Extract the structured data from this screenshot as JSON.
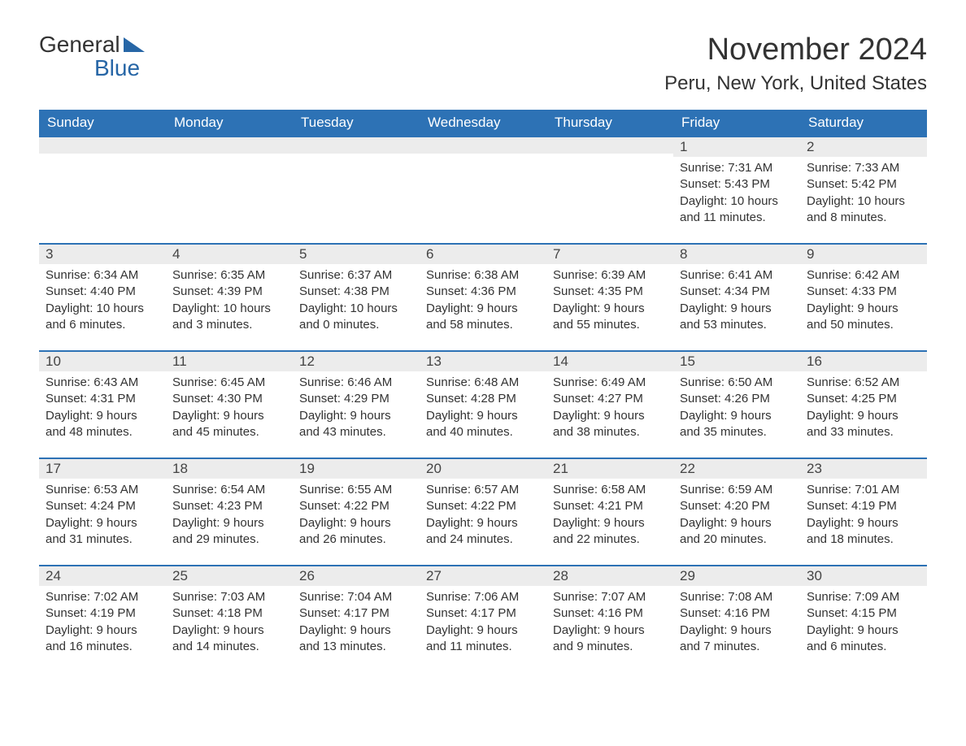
{
  "logo": {
    "word1": "General",
    "word2": "Blue"
  },
  "title": "November 2024",
  "location": "Peru, New York, United States",
  "colors": {
    "header_bg": "#2d72b5",
    "header_text": "#ffffff",
    "daynum_bg": "#ececec",
    "rule": "#2d72b5",
    "body_text": "#333333",
    "logo_accent": "#2766a6",
    "page_bg": "#ffffff"
  },
  "typography": {
    "title_fontsize": 38,
    "location_fontsize": 24,
    "header_fontsize": 17,
    "daynum_fontsize": 17,
    "body_fontsize": 15,
    "font_family": "Arial"
  },
  "layout": {
    "columns": 7,
    "rows": 5,
    "leading_blanks": 5
  },
  "weekdays": [
    "Sunday",
    "Monday",
    "Tuesday",
    "Wednesday",
    "Thursday",
    "Friday",
    "Saturday"
  ],
  "days": [
    {
      "n": 1,
      "sunrise": "7:31 AM",
      "sunset": "5:43 PM",
      "daylight": "10 hours and 11 minutes."
    },
    {
      "n": 2,
      "sunrise": "7:33 AM",
      "sunset": "5:42 PM",
      "daylight": "10 hours and 8 minutes."
    },
    {
      "n": 3,
      "sunrise": "6:34 AM",
      "sunset": "4:40 PM",
      "daylight": "10 hours and 6 minutes."
    },
    {
      "n": 4,
      "sunrise": "6:35 AM",
      "sunset": "4:39 PM",
      "daylight": "10 hours and 3 minutes."
    },
    {
      "n": 5,
      "sunrise": "6:37 AM",
      "sunset": "4:38 PM",
      "daylight": "10 hours and 0 minutes."
    },
    {
      "n": 6,
      "sunrise": "6:38 AM",
      "sunset": "4:36 PM",
      "daylight": "9 hours and 58 minutes."
    },
    {
      "n": 7,
      "sunrise": "6:39 AM",
      "sunset": "4:35 PM",
      "daylight": "9 hours and 55 minutes."
    },
    {
      "n": 8,
      "sunrise": "6:41 AM",
      "sunset": "4:34 PM",
      "daylight": "9 hours and 53 minutes."
    },
    {
      "n": 9,
      "sunrise": "6:42 AM",
      "sunset": "4:33 PM",
      "daylight": "9 hours and 50 minutes."
    },
    {
      "n": 10,
      "sunrise": "6:43 AM",
      "sunset": "4:31 PM",
      "daylight": "9 hours and 48 minutes."
    },
    {
      "n": 11,
      "sunrise": "6:45 AM",
      "sunset": "4:30 PM",
      "daylight": "9 hours and 45 minutes."
    },
    {
      "n": 12,
      "sunrise": "6:46 AM",
      "sunset": "4:29 PM",
      "daylight": "9 hours and 43 minutes."
    },
    {
      "n": 13,
      "sunrise": "6:48 AM",
      "sunset": "4:28 PM",
      "daylight": "9 hours and 40 minutes."
    },
    {
      "n": 14,
      "sunrise": "6:49 AM",
      "sunset": "4:27 PM",
      "daylight": "9 hours and 38 minutes."
    },
    {
      "n": 15,
      "sunrise": "6:50 AM",
      "sunset": "4:26 PM",
      "daylight": "9 hours and 35 minutes."
    },
    {
      "n": 16,
      "sunrise": "6:52 AM",
      "sunset": "4:25 PM",
      "daylight": "9 hours and 33 minutes."
    },
    {
      "n": 17,
      "sunrise": "6:53 AM",
      "sunset": "4:24 PM",
      "daylight": "9 hours and 31 minutes."
    },
    {
      "n": 18,
      "sunrise": "6:54 AM",
      "sunset": "4:23 PM",
      "daylight": "9 hours and 29 minutes."
    },
    {
      "n": 19,
      "sunrise": "6:55 AM",
      "sunset": "4:22 PM",
      "daylight": "9 hours and 26 minutes."
    },
    {
      "n": 20,
      "sunrise": "6:57 AM",
      "sunset": "4:22 PM",
      "daylight": "9 hours and 24 minutes."
    },
    {
      "n": 21,
      "sunrise": "6:58 AM",
      "sunset": "4:21 PM",
      "daylight": "9 hours and 22 minutes."
    },
    {
      "n": 22,
      "sunrise": "6:59 AM",
      "sunset": "4:20 PM",
      "daylight": "9 hours and 20 minutes."
    },
    {
      "n": 23,
      "sunrise": "7:01 AM",
      "sunset": "4:19 PM",
      "daylight": "9 hours and 18 minutes."
    },
    {
      "n": 24,
      "sunrise": "7:02 AM",
      "sunset": "4:19 PM",
      "daylight": "9 hours and 16 minutes."
    },
    {
      "n": 25,
      "sunrise": "7:03 AM",
      "sunset": "4:18 PM",
      "daylight": "9 hours and 14 minutes."
    },
    {
      "n": 26,
      "sunrise": "7:04 AM",
      "sunset": "4:17 PM",
      "daylight": "9 hours and 13 minutes."
    },
    {
      "n": 27,
      "sunrise": "7:06 AM",
      "sunset": "4:17 PM",
      "daylight": "9 hours and 11 minutes."
    },
    {
      "n": 28,
      "sunrise": "7:07 AM",
      "sunset": "4:16 PM",
      "daylight": "9 hours and 9 minutes."
    },
    {
      "n": 29,
      "sunrise": "7:08 AM",
      "sunset": "4:16 PM",
      "daylight": "9 hours and 7 minutes."
    },
    {
      "n": 30,
      "sunrise": "7:09 AM",
      "sunset": "4:15 PM",
      "daylight": "9 hours and 6 minutes."
    }
  ],
  "labels": {
    "sunrise": "Sunrise:",
    "sunset": "Sunset:",
    "daylight": "Daylight:"
  }
}
